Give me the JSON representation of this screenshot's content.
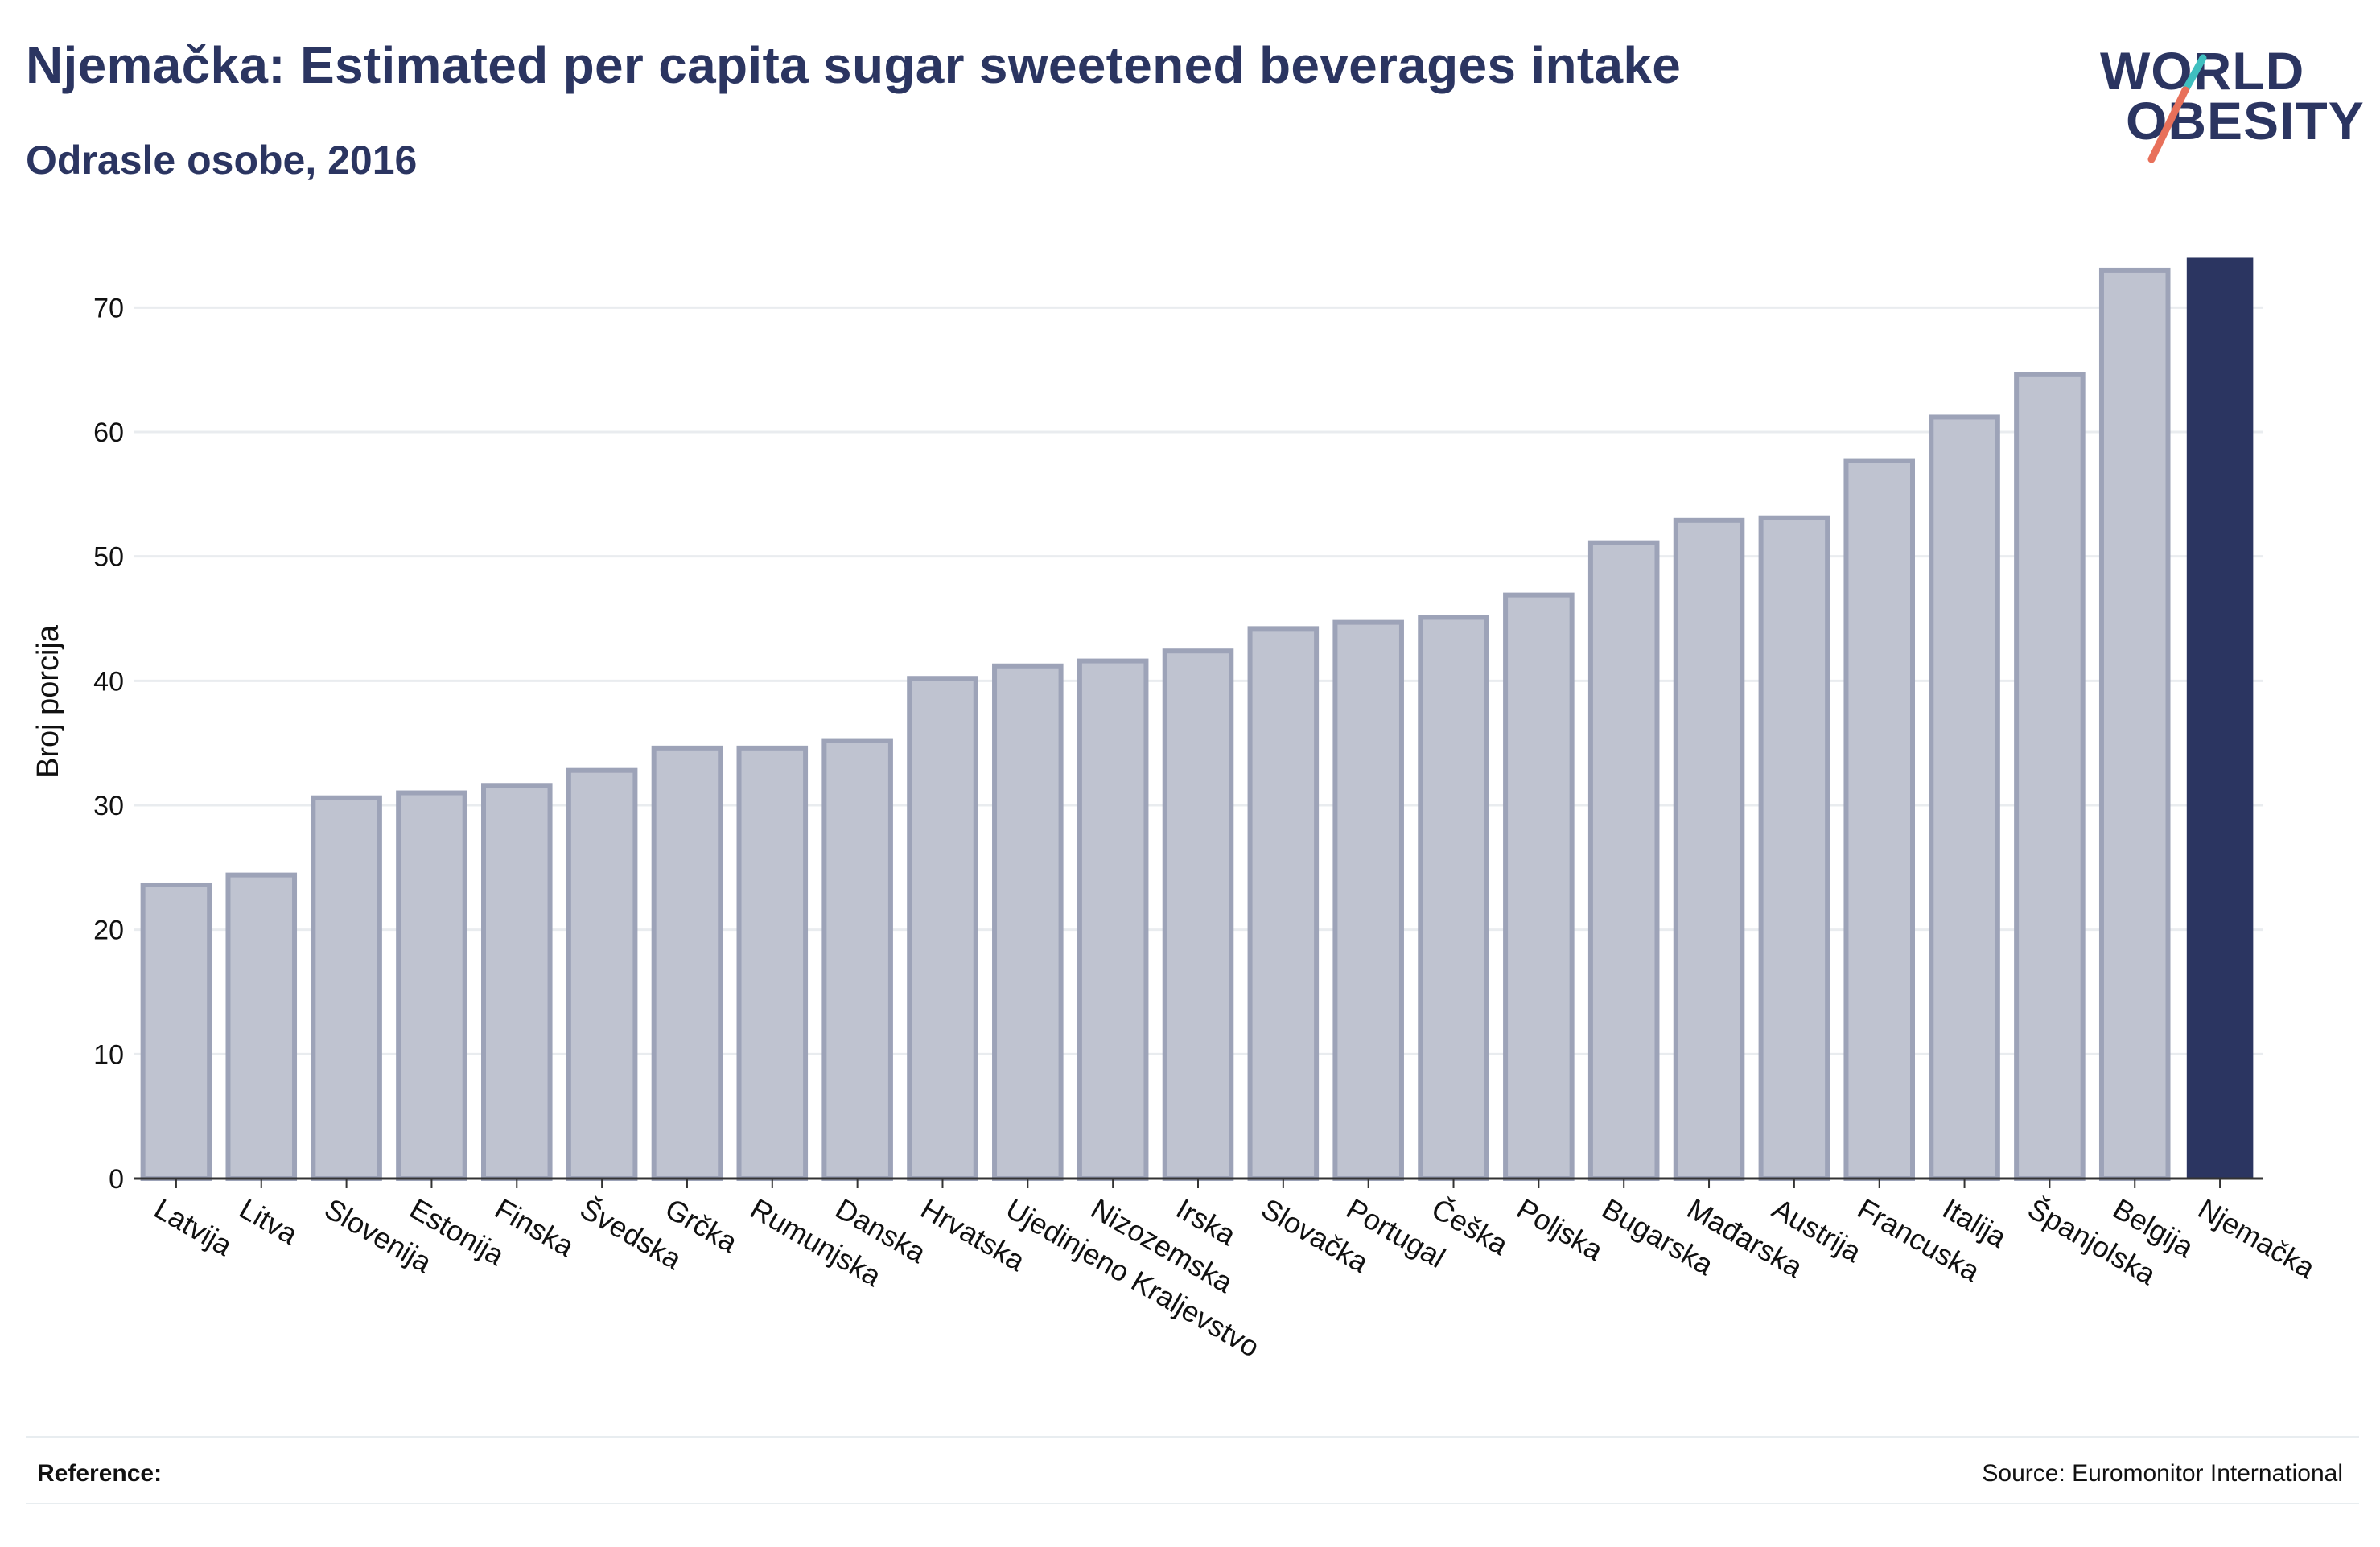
{
  "header": {
    "title": "Njemačka: Estimated per capita sugar sweetened beverages intake",
    "subtitle": "Odrasle osobe, 2016"
  },
  "logo": {
    "line1": "WORLD",
    "line2": "OBESITY",
    "slash_colors": [
      "#3fbfbf",
      "#e8705a"
    ]
  },
  "footer": {
    "reference_label": "Reference:",
    "source": "Source: Euromonitor International"
  },
  "colors": {
    "bar_fill": "#bfc3d0",
    "bar_stroke": "#9da3b8",
    "highlight": "#2b3561",
    "grid": "#e9ecef",
    "axis": "#333333"
  },
  "chart_data": {
    "type": "bar",
    "ylabel": "Broj porcija",
    "xlabel": "",
    "ylim": [
      0,
      75
    ],
    "yticks": [
      0,
      10,
      20,
      30,
      40,
      50,
      60,
      70
    ],
    "grid": true,
    "highlight_category": "Njemačka",
    "categories": [
      "Latvija",
      "Litva",
      "Slovenija",
      "Estonija",
      "Finska",
      "Švedska",
      "Grčka",
      "Rumunjska",
      "Danska",
      "Hrvatska",
      "Ujedinjeno Kraljevstvo",
      "Nizozemska",
      "Irska",
      "Slovačka",
      "Portugal",
      "Češka",
      "Poljska",
      "Bugarska",
      "Mađarska",
      "Austrija",
      "Francuska",
      "Italija",
      "Španjolska",
      "Belgija",
      "Njemačka"
    ],
    "values": [
      23.6,
      24.4,
      30.6,
      31.0,
      31.6,
      32.8,
      34.6,
      34.6,
      35.2,
      40.2,
      41.2,
      41.6,
      42.4,
      44.2,
      44.7,
      45.1,
      46.9,
      51.1,
      52.9,
      53.1,
      57.7,
      61.2,
      64.6,
      73.0,
      74.0
    ]
  }
}
